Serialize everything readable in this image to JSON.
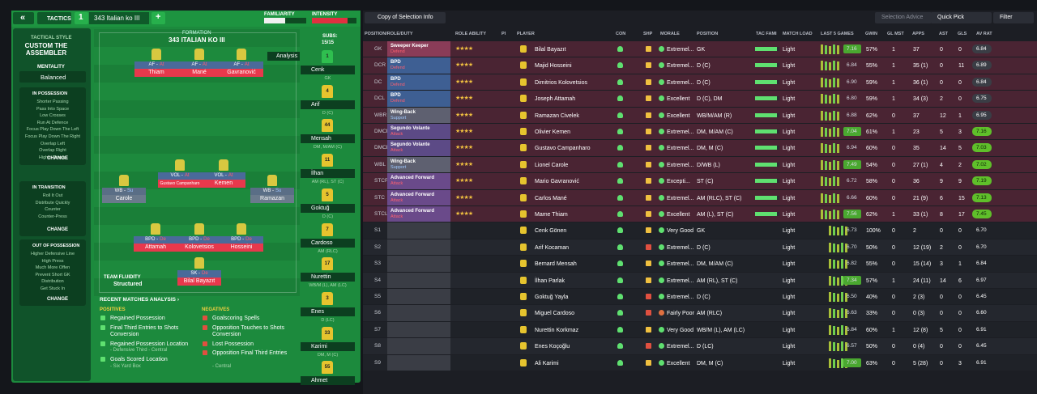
{
  "header": {
    "back": "«",
    "tactics": "TACTICS",
    "slot": "1",
    "tactic": "343 Italian ko III",
    "add": "+",
    "familiarity": "FAMILIARITY",
    "intensity": "INTENSITY"
  },
  "style": {
    "label": "TACTICAL STYLE",
    "name": "CUSTOM THE ASSEMBLER",
    "mentality_label": "MENTALITY",
    "mentality": "Balanced"
  },
  "phases": [
    {
      "title": "IN POSSESSION",
      "items": [
        "Shorter Passing",
        "Pass Into Space",
        "Low Crosses",
        "Run At Defence",
        "Focus Play Down The Left",
        "Focus Play Down The Right",
        "Overlap Left",
        "Overlap Right",
        "Higher Tempo"
      ],
      "change": "CHANGE"
    },
    {
      "title": "IN TRANSITION",
      "items": [
        "Roll It Out",
        "Distribute Quickly",
        "Counter",
        "Counter-Press"
      ],
      "change": "CHANGE"
    },
    {
      "title": "OUT OF POSSESSION",
      "items": [
        "Higher Defensive Line",
        "High Press",
        "Much More Offen",
        "Prevent Short GK",
        "Distribution",
        "Get Stuck In"
      ],
      "change": "CHANGE"
    }
  ],
  "formation": {
    "label": "FORMATION",
    "name": "343 ITALIAN KO III",
    "analysis": "Analysis",
    "fluidity_label": "TEAM FLUIDITY",
    "fluidity": "Structured",
    "players": [
      {
        "role": "AF -",
        "duty": "At",
        "name": "Thiam"
      },
      {
        "role": "AF -",
        "duty": "At",
        "name": "Mané"
      },
      {
        "role": "AF -",
        "duty": "At",
        "name": "Gavranović"
      },
      {
        "role": "VOL -",
        "duty": "At",
        "name": "Gustavo Campanharo"
      },
      {
        "role": "VOL -",
        "duty": "At",
        "name": "Kemen"
      },
      {
        "role": "WB -",
        "duty": "Su",
        "name": "Carole"
      },
      {
        "role": "WB -",
        "duty": "Su",
        "name": "Ramazan"
      },
      {
        "role": "BPD -",
        "duty": "De",
        "name": "Attamah"
      },
      {
        "role": "BPD -",
        "duty": "De",
        "name": "Kolovetsios"
      },
      {
        "role": "BPD -",
        "duty": "De",
        "name": "Hosseini"
      },
      {
        "role": "SK -",
        "duty": "De",
        "name": "Bilal Bayazıt"
      }
    ]
  },
  "subs": {
    "label": "SUBS:",
    "count": "15/15",
    "players": [
      {
        "number": "1",
        "name": "Cenk",
        "position": "GK"
      },
      {
        "number": "4",
        "name": "Arif",
        "position": "D (C)"
      },
      {
        "number": "44",
        "name": "Mensah",
        "position": "DM, M/AM (C)"
      },
      {
        "number": "11",
        "name": "İlhan",
        "position": "AM (RL), ST (C)"
      },
      {
        "number": "5",
        "name": "Goktuğ",
        "position": "D (C)"
      },
      {
        "number": "7",
        "name": "Cardoso",
        "position": "AM (RLC)"
      },
      {
        "number": "17",
        "name": "Nurettin",
        "position": "WB/M (L), AM (LC)"
      },
      {
        "number": "3",
        "name": "Enes",
        "position": "D (LC)"
      },
      {
        "number": "33",
        "name": "Karimi",
        "position": "DM, M (C)"
      },
      {
        "number": "55",
        "name": "Ahmet",
        "position": ""
      }
    ]
  },
  "analysis": {
    "title": "RECENT MATCHES ANALYSIS ›",
    "positives_title": "POSITIVES",
    "positives": [
      {
        "text": "Regained Possession"
      },
      {
        "text": "Final Third Entries to Shots Conversion"
      },
      {
        "text": "Regained Possession Location",
        "detail": "- Defensive Third - Central"
      },
      {
        "text": "Goals Scored Location",
        "detail": "- Six Yard Box"
      }
    ],
    "negatives_title": "NEGATIVES",
    "negatives": [
      {
        "text": "Goalscoring Spells"
      },
      {
        "text": "Opposition Touches to Shots Conversion"
      },
      {
        "text": "Lost Possession"
      },
      {
        "text": "Opposition Final Third Entries",
        "detail": "- Central"
      }
    ]
  },
  "table": {
    "view": "Copy of Selection Info",
    "buttons": [
      "Selection Advice",
      "Quick Pick",
      "Filter"
    ],
    "columns": [
      "POSITION/ROLE/DUTY",
      "ROLE ABILITY",
      "PI",
      "PLAYER",
      "CON",
      "SHP",
      "MORALE",
      "POSITION",
      "TAC FAMI",
      "MATCH LOAD",
      "LAST 5 GAMES",
      "GWIN",
      "GL MST",
      "APPS",
      "AST",
      "GLS",
      "AV RAT"
    ],
    "rows": [
      {
        "slot": "GK",
        "role": "Sweeper Keeper",
        "duty": "Defend",
        "player": "Bilal Bayazıt",
        "morale": "Extremel...",
        "position": "GK",
        "load": "Light",
        "form": "7.16",
        "gwin": "57%",
        "gl_mst": "1",
        "apps": "37",
        "ast": "0",
        "gls": "0",
        "av_rat": "6.84"
      },
      {
        "slot": "DCR",
        "role": "BPD",
        "duty": "Defend",
        "player": "Majid Hosseini",
        "morale": "Extremel...",
        "position": "D (C)",
        "load": "Light",
        "form": "6.84",
        "gwin": "55%",
        "gl_mst": "1",
        "apps": "35 (1)",
        "ast": "0",
        "gls": "11",
        "av_rat": "6.89"
      },
      {
        "slot": "DC",
        "role": "BPD",
        "duty": "Defend",
        "player": "Dimitrios Kolovetsios",
        "morale": "Extremel...",
        "position": "D (C)",
        "load": "Light",
        "form": "6.90",
        "gwin": "59%",
        "gl_mst": "1",
        "apps": "36 (1)",
        "ast": "0",
        "gls": "0",
        "av_rat": "6.84"
      },
      {
        "slot": "DCL",
        "role": "BPD",
        "duty": "Defend",
        "player": "Joseph Attamah",
        "morale": "Excellent",
        "position": "D (C), DM",
        "load": "Light",
        "form": "6.80",
        "gwin": "59%",
        "gl_mst": "1",
        "apps": "34 (3)",
        "ast": "2",
        "gls": "0",
        "av_rat": "6.75"
      },
      {
        "slot": "WBR",
        "role": "Wing-Back",
        "duty": "Support",
        "player": "Ramazan Civelek",
        "morale": "Excellent",
        "position": "WB/M/AM (R)",
        "load": "Light",
        "form": "6.88",
        "gwin": "62%",
        "gl_mst": "0",
        "apps": "37",
        "ast": "12",
        "gls": "1",
        "av_rat": "6.95"
      },
      {
        "slot": "DMCR",
        "role": "Segundo Volante",
        "duty": "Attack",
        "player": "Olivier Kemen",
        "morale": "Extremel...",
        "position": "DM, M/AM (C)",
        "load": "Light",
        "form": "7.04",
        "gwin": "61%",
        "gl_mst": "1",
        "apps": "23",
        "ast": "5",
        "gls": "3",
        "av_rat": "7.16"
      },
      {
        "slot": "DMCL",
        "role": "Segundo Volante",
        "duty": "Attack",
        "player": "Gustavo Campanharo",
        "morale": "Extremel...",
        "position": "DM, M (C)",
        "load": "Light",
        "form": "6.94",
        "gwin": "60%",
        "gl_mst": "0",
        "apps": "35",
        "ast": "14",
        "gls": "5",
        "av_rat": "7.03"
      },
      {
        "slot": "WBL",
        "role": "Wing-Back",
        "duty": "Support",
        "player": "Lionel Carole",
        "morale": "Extremel...",
        "position": "D/WB (L)",
        "load": "Light",
        "form": "7.49",
        "gwin": "54%",
        "gl_mst": "0",
        "apps": "27 (1)",
        "ast": "4",
        "gls": "2",
        "av_rat": "7.02"
      },
      {
        "slot": "STCR",
        "role": "Advanced Forward",
        "duty": "Attack",
        "player": "Mario Gavranović",
        "morale": "Excepti...",
        "position": "ST (C)",
        "load": "Light",
        "form": "6.72",
        "gwin": "58%",
        "gl_mst": "0",
        "apps": "36",
        "ast": "9",
        "gls": "9",
        "av_rat": "7.19"
      },
      {
        "slot": "STC",
        "role": "Advanced Forward",
        "duty": "Attack",
        "player": "Carlos Mané",
        "morale": "Extremel...",
        "position": "AM (RLC), ST (C)",
        "load": "Light",
        "form": "6.66",
        "gwin": "60%",
        "gl_mst": "0",
        "apps": "21 (9)",
        "ast": "6",
        "gls": "15",
        "av_rat": "7.13"
      },
      {
        "slot": "STCL",
        "role": "Advanced Forward",
        "duty": "Attack",
        "player": "Mame Thiam",
        "morale": "Excellent",
        "position": "AM (L), ST (C)",
        "load": "Light",
        "form": "7.56",
        "gwin": "62%",
        "gl_mst": "1",
        "apps": "33 (1)",
        "ast": "8",
        "gls": "17",
        "av_rat": "7.45"
      },
      {
        "slot": "S1",
        "player": "Cenk Gönen",
        "morale": "Very Good",
        "position": "GK",
        "load": "Light",
        "form": "6.73",
        "gwin": "100%",
        "gl_mst": "0",
        "apps": "2",
        "ast": "0",
        "gls": "0",
        "av_rat": "6.70"
      },
      {
        "slot": "S2",
        "player": "Arif Kocaman",
        "morale": "Extremel...",
        "position": "D (C)",
        "load": "Light",
        "form": "6.70",
        "gwin": "50%",
        "gl_mst": "0",
        "apps": "12 (19)",
        "ast": "2",
        "gls": "0",
        "av_rat": "6.70"
      },
      {
        "slot": "S3",
        "player": "Bernard Mensah",
        "morale": "Extremel...",
        "position": "DM, M/AM (C)",
        "load": "Light",
        "form": "6.82",
        "gwin": "55%",
        "gl_mst": "0",
        "apps": "15 (14)",
        "ast": "3",
        "gls": "1",
        "av_rat": "6.84"
      },
      {
        "slot": "S4",
        "player": "İlhan Parlak",
        "morale": "Extremel...",
        "position": "AM (RL), ST (C)",
        "load": "Light",
        "form": "7.34",
        "gwin": "57%",
        "gl_mst": "1",
        "apps": "24 (11)",
        "ast": "14",
        "gls": "6",
        "av_rat": "6.97"
      },
      {
        "slot": "S5",
        "player": "Goktuğ Yayla",
        "morale": "Extremel...",
        "position": "D (C)",
        "load": "Light",
        "form": "6.50",
        "gwin": "40%",
        "gl_mst": "0",
        "apps": "2 (3)",
        "ast": "0",
        "gls": "0",
        "av_rat": "6.45"
      },
      {
        "slot": "S6",
        "player": "Miguel Cardoso",
        "morale": "Fairly Poor",
        "position": "AM (RLC)",
        "load": "Light",
        "form": "6.63",
        "gwin": "33%",
        "gl_mst": "0",
        "apps": "0 (3)",
        "ast": "0",
        "gls": "0",
        "av_rat": "6.60"
      },
      {
        "slot": "S7",
        "player": "Nurettin Korkmaz",
        "morale": "Very Good",
        "position": "WB/M (L), AM (LC)",
        "load": "Light",
        "form": "6.84",
        "gwin": "60%",
        "gl_mst": "1",
        "apps": "12 (8)",
        "ast": "5",
        "gls": "0",
        "av_rat": "6.91"
      },
      {
        "slot": "S8",
        "player": "Enes Koçoğlu",
        "morale": "Extremel...",
        "position": "D (LC)",
        "load": "Light",
        "form": "6.57",
        "gwin": "50%",
        "gl_mst": "0",
        "apps": "0 (4)",
        "ast": "0",
        "gls": "0",
        "av_rat": "6.45"
      },
      {
        "slot": "S9",
        "player": "Ali Karimi",
        "morale": "Excellent",
        "position": "DM, M (C)",
        "load": "Light",
        "form": "7.00",
        "gwin": "63%",
        "gl_mst": "0",
        "apps": "5 (28)",
        "ast": "0",
        "gls": "3",
        "av_rat": "6.91"
      }
    ]
  }
}
